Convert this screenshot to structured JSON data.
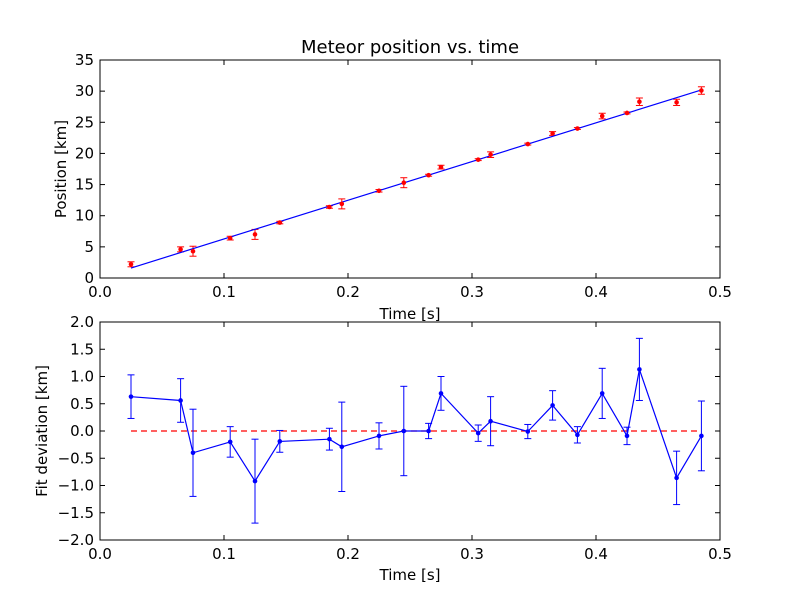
{
  "chart_data": [
    {
      "type": "scatter",
      "title": "Meteor position vs. time",
      "xlabel": "Time [s]",
      "ylabel": "Position [km]",
      "xlim": [
        0.0,
        0.5
      ],
      "ylim": [
        0,
        35
      ],
      "xticks": [
        "0.0",
        "0.1",
        "0.2",
        "0.3",
        "0.4",
        "0.5"
      ],
      "yticks": [
        "0",
        "5",
        "10",
        "15",
        "20",
        "25",
        "30",
        "35"
      ],
      "grid": false,
      "colors": {
        "points": "#ff0000",
        "fit": "#0000ff"
      },
      "series": [
        {
          "kind": "points-with-errorbars",
          "x": [
            0.025,
            0.065,
            0.075,
            0.105,
            0.125,
            0.145,
            0.185,
            0.195,
            0.225,
            0.245,
            0.265,
            0.275,
            0.305,
            0.315,
            0.345,
            0.365,
            0.385,
            0.405,
            0.425,
            0.435,
            0.465,
            0.485
          ],
          "y": [
            2.2,
            4.6,
            4.3,
            6.4,
            7.0,
            8.9,
            11.4,
            11.9,
            14.0,
            15.3,
            16.5,
            17.8,
            19.0,
            19.8,
            21.5,
            23.2,
            24.0,
            26.0,
            26.5,
            28.3,
            28.2,
            30.1
          ],
          "err": [
            0.4,
            0.4,
            0.8,
            0.3,
            0.8,
            0.2,
            0.2,
            0.8,
            0.2,
            0.8,
            0.15,
            0.3,
            0.15,
            0.45,
            0.15,
            0.3,
            0.15,
            0.45,
            0.15,
            0.6,
            0.5,
            0.6
          ]
        },
        {
          "kind": "fit-line",
          "x": [
            0.025,
            0.485
          ],
          "y": [
            1.6,
            30.2
          ]
        }
      ]
    },
    {
      "type": "line",
      "xlabel": "Time [s]",
      "ylabel": "Fit deviation [km]",
      "xlim": [
        0.0,
        0.5
      ],
      "ylim": [
        -2.0,
        2.0
      ],
      "xticks": [
        "0.0",
        "0.1",
        "0.2",
        "0.3",
        "0.4",
        "0.5"
      ],
      "yticks": [
        "−2.0",
        "−1.5",
        "−1.0",
        "−0.5",
        "0.0",
        "0.5",
        "1.0",
        "1.5",
        "2.0"
      ],
      "grid": false,
      "colors": {
        "series": "#0000ff",
        "reference": "#ff0000"
      },
      "reference_line_y": 0.0,
      "series": [
        {
          "kind": "line-with-errorbars",
          "x": [
            0.025,
            0.065,
            0.075,
            0.105,
            0.125,
            0.145,
            0.185,
            0.195,
            0.225,
            0.245,
            0.265,
            0.275,
            0.305,
            0.315,
            0.345,
            0.365,
            0.385,
            0.405,
            0.425,
            0.435,
            0.465,
            0.485
          ],
          "y": [
            0.63,
            0.56,
            -0.4,
            -0.2,
            -0.92,
            -0.19,
            -0.15,
            -0.29,
            -0.09,
            0.0,
            0.0,
            0.69,
            -0.04,
            0.18,
            -0.01,
            0.47,
            -0.07,
            0.69,
            -0.09,
            1.13,
            -0.86,
            -0.09
          ],
          "err": [
            0.4,
            0.4,
            0.8,
            0.28,
            0.77,
            0.2,
            0.2,
            0.82,
            0.24,
            0.82,
            0.14,
            0.31,
            0.15,
            0.45,
            0.13,
            0.27,
            0.15,
            0.46,
            0.16,
            0.57,
            0.49,
            0.64
          ]
        }
      ]
    }
  ]
}
